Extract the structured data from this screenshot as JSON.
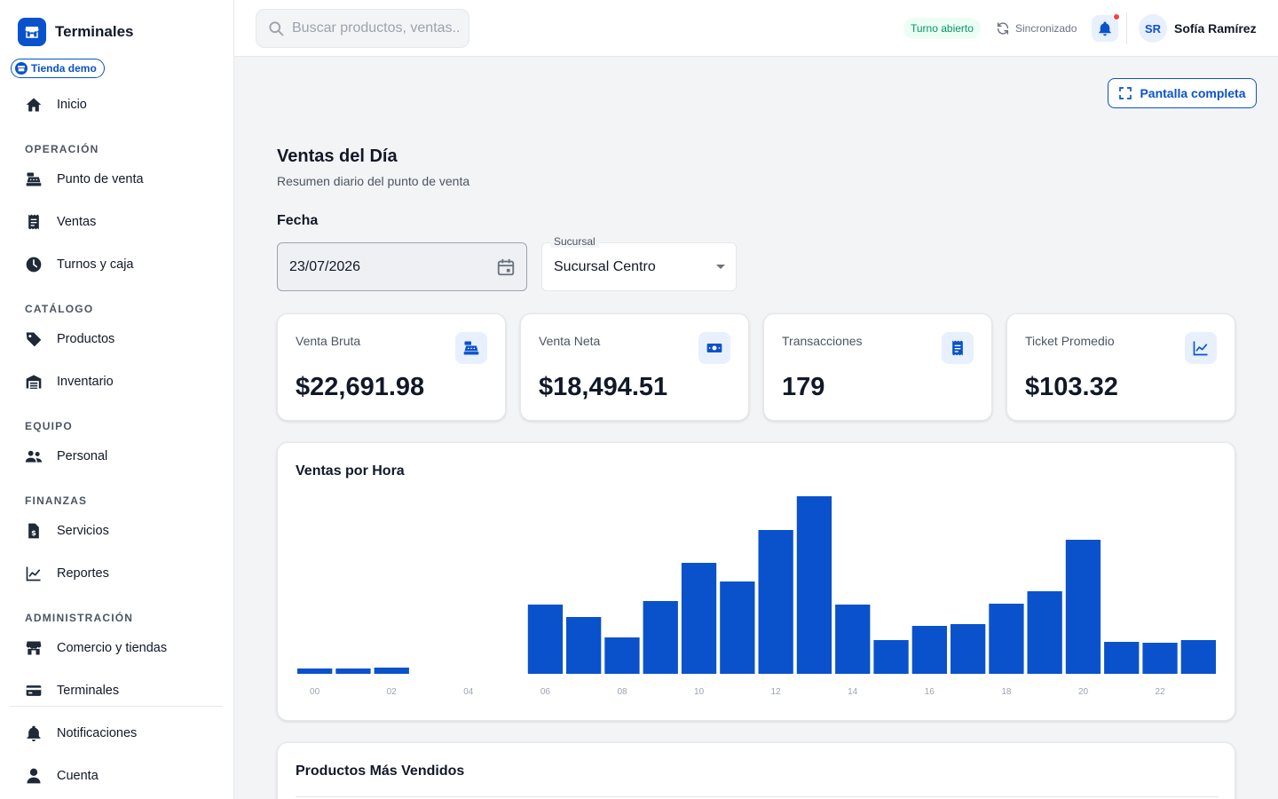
{
  "brand": {
    "name": "Terminales",
    "store_chip": "Tienda demo"
  },
  "sidebar": {
    "home": "Inicio",
    "sections": [
      {
        "title": "OPERACIÓN",
        "items": [
          "Punto de venta",
          "Ventas",
          "Turnos y caja"
        ]
      },
      {
        "title": "CATÁLOGO",
        "items": [
          "Productos",
          "Inventario"
        ]
      },
      {
        "title": "EQUIPO",
        "items": [
          "Personal"
        ]
      },
      {
        "title": "FINANZAS",
        "items": [
          "Servicios",
          "Reportes"
        ]
      },
      {
        "title": "ADMINISTRACIÓN",
        "items": [
          "Comercio y tiendas",
          "Terminales"
        ]
      }
    ],
    "bottom": [
      "Notificaciones",
      "Cuenta"
    ]
  },
  "topbar": {
    "search_placeholder": "Buscar productos, ventas...",
    "shift_status": "Turno abierto",
    "sync_status": "Sincronizado",
    "user_initials": "SR",
    "user_name": "Sofía Ramírez"
  },
  "main": {
    "fullscreen_label": "Pantalla completa",
    "title": "Ventas del Día",
    "subtitle": "Resumen diario del punto de venta",
    "date_label": "Fecha",
    "date_value": "23/07/2026",
    "branch_label": "Sucursal",
    "branch_value": "Sucursal Centro",
    "kpis": [
      {
        "label": "Venta Bruta",
        "value": "$22,691.98",
        "icon": "cash-register-icon"
      },
      {
        "label": "Venta Neta",
        "value": "$18,494.51",
        "icon": "money-bill-icon"
      },
      {
        "label": "Transacciones",
        "value": "179",
        "icon": "receipt-icon"
      },
      {
        "label": "Ticket Promedio",
        "value": "$103.32",
        "icon": "trend-chart-icon"
      }
    ],
    "products_title": "Productos Más Vendidos"
  },
  "colors": {
    "accent": "#0a52cc",
    "success": "#059669",
    "alert": "#ef4444"
  },
  "chart_data": {
    "type": "bar",
    "title": "Ventas por Hora",
    "categories": [
      "00",
      "01",
      "02",
      "03",
      "04",
      "05",
      "06",
      "07",
      "08",
      "09",
      "10",
      "11",
      "12",
      "13",
      "14",
      "15",
      "16",
      "17",
      "18",
      "19",
      "20",
      "21",
      "22",
      "23"
    ],
    "tick_labels": [
      "00",
      "02",
      "04",
      "06",
      "08",
      "10",
      "12",
      "14",
      "16",
      "18",
      "20",
      "22"
    ],
    "values": [
      30,
      30,
      35,
      0,
      0,
      0,
      390,
      320,
      205,
      410,
      625,
      520,
      810,
      1000,
      390,
      190,
      270,
      280,
      395,
      465,
      755,
      180,
      175,
      190
    ],
    "ylim": [
      0,
      1000
    ],
    "grid": false,
    "color": "#0a52cc"
  }
}
